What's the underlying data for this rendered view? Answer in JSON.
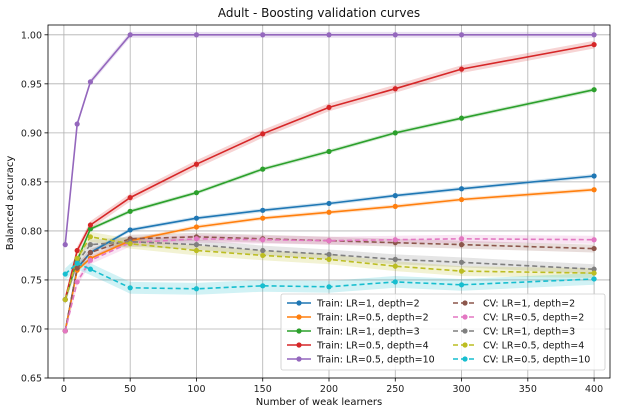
{
  "chart_data": {
    "type": "line",
    "title": "Adult - Boosting validation curves",
    "xlabel": "Number of weak learners",
    "ylabel": "Balanced accuracy",
    "xlim": [
      -12,
      412
    ],
    "ylim": [
      0.65,
      1.01
    ],
    "xticks": [
      0,
      50,
      100,
      150,
      200,
      250,
      300,
      350,
      400
    ],
    "yticks": [
      0.65,
      0.7,
      0.75,
      0.8,
      0.85,
      0.9,
      0.95,
      1.0
    ],
    "grid": true,
    "legend_position": "lower-right",
    "x": [
      1,
      10,
      20,
      50,
      100,
      150,
      200,
      250,
      300,
      400
    ],
    "series": [
      {
        "name": "Train: LR=1, depth=2",
        "color": "#1f77b4",
        "style": "solid",
        "values": [
          0.698,
          0.762,
          0.778,
          0.801,
          0.813,
          0.821,
          0.828,
          0.836,
          0.843,
          0.856
        ],
        "band": 0.002
      },
      {
        "name": "Train: LR=0.5, depth=2",
        "color": "#ff7f0e",
        "style": "solid",
        "values": [
          0.698,
          0.76,
          0.772,
          0.79,
          0.804,
          0.813,
          0.819,
          0.825,
          0.832,
          0.842
        ],
        "band": 0.002
      },
      {
        "name": "Train: LR=1, depth=3",
        "color": "#2ca02c",
        "style": "solid",
        "values": [
          0.73,
          0.77,
          0.802,
          0.82,
          0.839,
          0.863,
          0.881,
          0.9,
          0.915,
          0.944
        ],
        "band": 0.002
      },
      {
        "name": "Train: LR=0.5, depth=4",
        "color": "#d62728",
        "style": "solid",
        "values": [
          0.73,
          0.78,
          0.806,
          0.834,
          0.868,
          0.899,
          0.926,
          0.945,
          0.965,
          0.99
        ],
        "band": 0.004
      },
      {
        "name": "Train: LR=0.5, depth=10",
        "color": "#9467bd",
        "style": "solid",
        "values": [
          0.786,
          0.909,
          0.952,
          1.0,
          1.0,
          1.0,
          1.0,
          1.0,
          1.0,
          1.0
        ],
        "band": 0.003
      },
      {
        "name": "CV: LR=1, depth=2",
        "color": "#8c564b",
        "style": "dashed",
        "values": [
          0.698,
          0.762,
          0.778,
          0.792,
          0.794,
          0.792,
          0.79,
          0.788,
          0.786,
          0.782
        ],
        "band": 0.004
      },
      {
        "name": "CV: LR=0.5, depth=2",
        "color": "#e377c2",
        "style": "dashed",
        "values": [
          0.698,
          0.748,
          0.77,
          0.788,
          0.792,
          0.791,
          0.79,
          0.791,
          0.792,
          0.791
        ],
        "band": 0.004
      },
      {
        "name": "CV: LR=1, depth=3",
        "color": "#7f7f7f",
        "style": "dashed",
        "values": [
          0.73,
          0.768,
          0.786,
          0.789,
          0.786,
          0.78,
          0.776,
          0.771,
          0.768,
          0.761
        ],
        "band": 0.005
      },
      {
        "name": "CV: LR=0.5, depth=4",
        "color": "#bcbd22",
        "style": "dashed",
        "values": [
          0.73,
          0.772,
          0.794,
          0.787,
          0.78,
          0.775,
          0.771,
          0.764,
          0.759,
          0.757
        ],
        "band": 0.005
      },
      {
        "name": "CV: LR=0.5, depth=10",
        "color": "#17becf",
        "style": "dashed",
        "values": [
          0.756,
          0.767,
          0.761,
          0.742,
          0.741,
          0.744,
          0.743,
          0.748,
          0.745,
          0.751
        ],
        "band": 0.006
      }
    ]
  }
}
